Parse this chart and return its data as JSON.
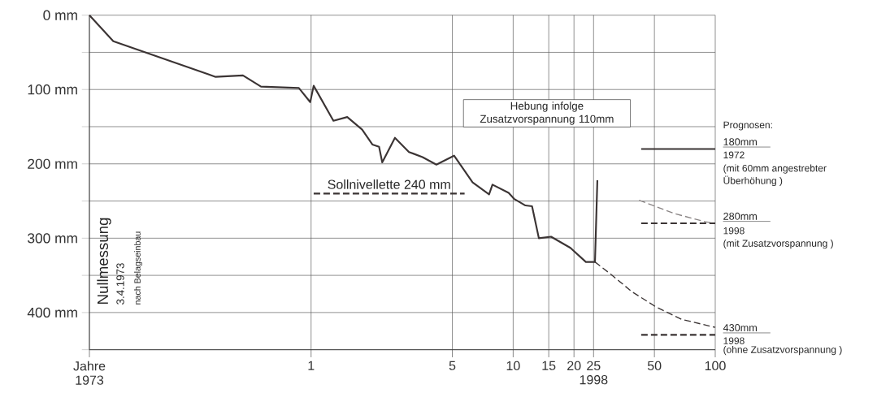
{
  "chart_data": {
    "type": "line",
    "log": "x",
    "grid": true,
    "xlim": [
      0.08,
      100
    ],
    "ylim": [
      450,
      0
    ],
    "xticks": [
      {
        "value": 0.08,
        "label": "Jahre 1973"
      },
      1,
      5,
      10,
      15,
      20,
      {
        "value": 25,
        "label": "25 1998"
      },
      50,
      100
    ],
    "yticks": [
      {
        "value": 0,
        "label": "0 mm"
      },
      {
        "value": 50,
        "label": null
      },
      {
        "value": 100,
        "label": "100 mm"
      },
      {
        "value": 150,
        "label": null
      },
      {
        "value": 200,
        "label": "200 mm"
      },
      {
        "value": 250,
        "label": null
      },
      {
        "value": 300,
        "label": "300 mm"
      },
      {
        "value": 350,
        "label": null
      },
      {
        "value": 400,
        "label": "400 mm"
      },
      {
        "value": 450,
        "label": null
      }
    ],
    "series": [
      {
        "color": "#3b3434",
        "line_style": "solid",
        "x": [
          0.08,
          0.105,
          0.337,
          0.46,
          0.565,
          0.87,
          0.99,
          1.03,
          1.29,
          1.51,
          1.79,
          2.01,
          2.17,
          2.25,
          2.6,
          3.05,
          3.56,
          4.17,
          5.1,
          6.3,
          7.6,
          7.9,
          9.5,
          10.1,
          11.5,
          12.4,
          13.4,
          15.4,
          19.2,
          22.9,
          25.4,
          26.1
        ],
        "values": [
          0,
          35,
          83,
          81,
          96,
          98,
          117,
          95,
          142,
          137,
          154,
          174,
          177,
          198,
          165,
          184,
          191,
          201,
          189,
          225,
          241,
          228,
          239,
          247,
          256,
          257,
          300,
          298,
          313,
          332,
          332,
          222
        ]
      },
      {
        "name": "Sollnivellette 240 mm",
        "color": "#3b3434",
        "line_style": "dashed",
        "x": [
          1.03,
          5.75
        ],
        "values": [
          240,
          240
        ]
      },
      {
        "color": "#3b3434",
        "line_style": "dashed",
        "x": [
          25.4,
          30.6,
          38.7,
          50.6,
          68,
          100
        ],
        "values": [
          332,
          349,
          372,
          392,
          409,
          420
        ]
      },
      {
        "color": "#8a8585",
        "line_style": "dashed",
        "x": [
          42,
          63,
          89.5,
          100
        ],
        "values": [
          249,
          267,
          278,
          280
        ]
      },
      {
        "name": "180mm",
        "color": "#3b3434",
        "line_style": "solid",
        "x": [
          43,
          100
        ],
        "values": [
          180,
          180
        ]
      },
      {
        "name": "280mm",
        "color": "#3b3434",
        "line_style": "dashed",
        "x": [
          43,
          100
        ],
        "values": [
          280,
          280
        ]
      },
      {
        "name": "430mm",
        "color": "#3b3434",
        "line_style": "dashed",
        "x": [
          43,
          100
        ],
        "values": [
          430,
          430
        ]
      }
    ],
    "annotations": [
      "Nullmessung",
      "3.4.1973",
      "nach Belagseinbau",
      "Hebung infolge Zusatzvorspannung 110mm",
      "Prognosen:",
      "1972",
      "(mit 60mm angestrebter",
      "Überhöhung )",
      "1998",
      "(mit Zusatzvorspannung )",
      "1998",
      "(ohne Zusatzvorspannung )"
    ]
  }
}
